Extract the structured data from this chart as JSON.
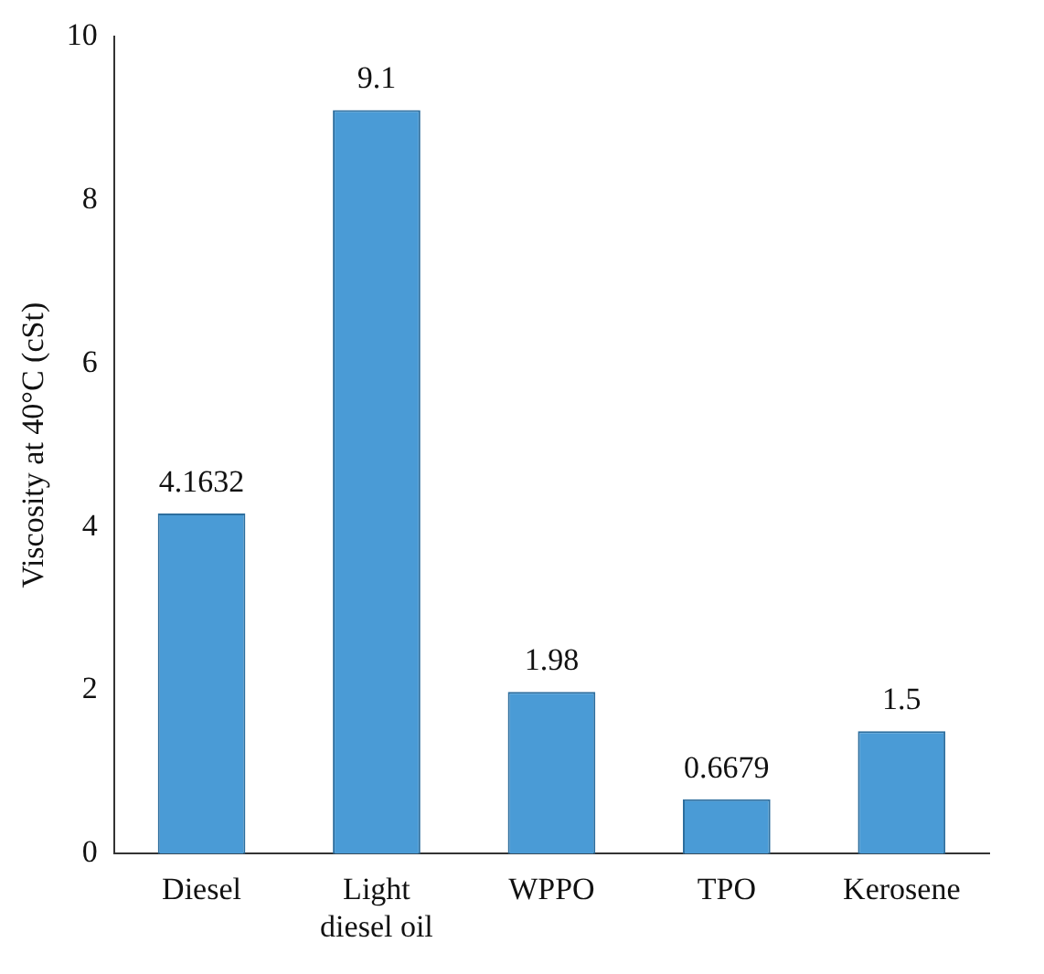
{
  "chart_data": {
    "type": "bar",
    "ylabel": "Viscosity at 40°C (cSt)",
    "categories": [
      "Diesel",
      "Light diesel oil",
      "WPPO",
      "TPO",
      "Kerosene"
    ],
    "values": [
      4.1632,
      9.1,
      1.98,
      0.6679,
      1.5
    ],
    "color": "#4a9bd6",
    "ylim": [
      0,
      10
    ],
    "yticks": [
      0,
      2,
      4,
      6,
      8,
      10
    ],
    "grid": false,
    "legend": false,
    "data_labels": true
  }
}
